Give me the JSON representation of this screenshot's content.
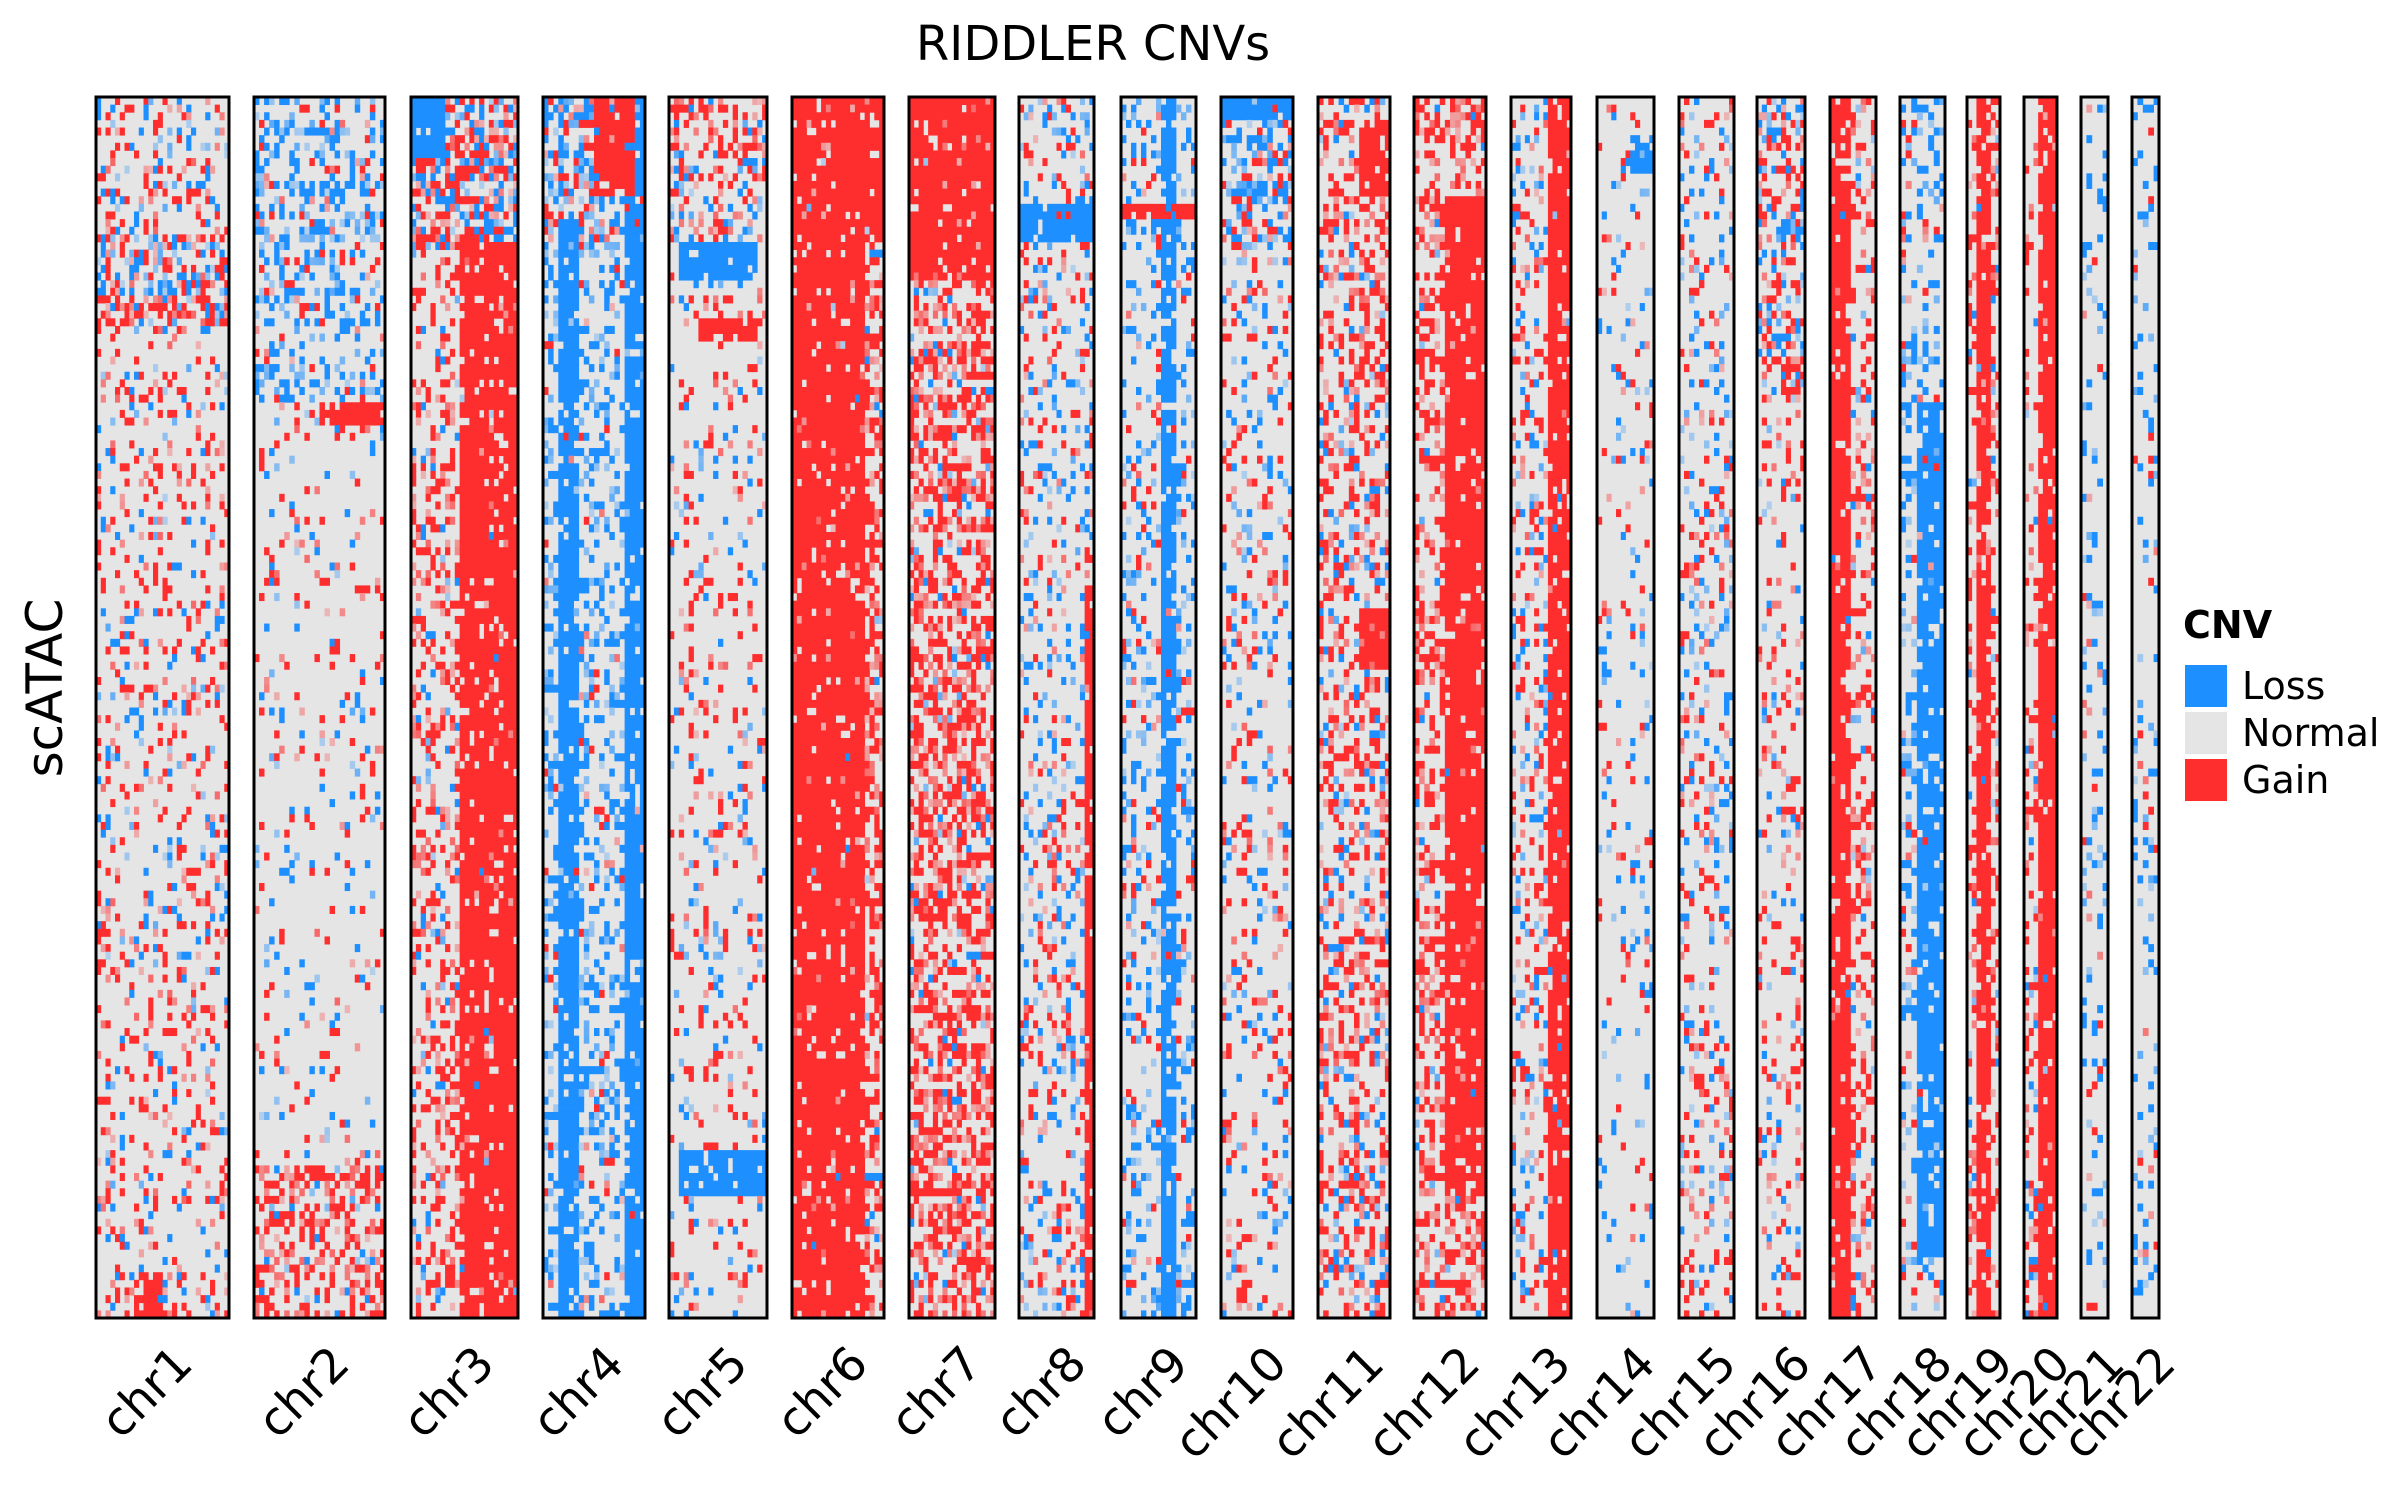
{
  "chart_data": {
    "type": "heatmap",
    "title": "RIDDLER CNVs",
    "ylabel": "scATAC",
    "categories": [
      "chr1",
      "chr2",
      "chr3",
      "chr4",
      "chr5",
      "chr6",
      "chr7",
      "chr8",
      "chr9",
      "chr10",
      "chr11",
      "chr12",
      "chr13",
      "chr14",
      "chr15",
      "chr16",
      "chr17",
      "chr18",
      "chr19",
      "chr20",
      "chr21",
      "chr22"
    ],
    "chromosome_bins": [
      28,
      26,
      22,
      20,
      20,
      19,
      18,
      16,
      15,
      14,
      14,
      14,
      13,
      12,
      11,
      10,
      9,
      8,
      7,
      7,
      5,
      5
    ],
    "n_cells": 160,
    "legend": {
      "title": "CNV",
      "entries": [
        {
          "label": "Loss",
          "color": "#1E8FFF"
        },
        {
          "label": "Normal",
          "color": "#E5E5E5"
        },
        {
          "label": "Gain",
          "color": "#FF2E2E"
        }
      ],
      "placement": "right"
    },
    "series": [
      {
        "name": "chr1",
        "profile": [
          {
            "cells": [
              0,
              18
            ],
            "gain": 0.18,
            "loss": 0.12
          },
          {
            "cells": [
              18,
              30
            ],
            "gain": 0.35,
            "loss": 0.25
          },
          {
            "cells": [
              30,
              160
            ],
            "gain": 0.14,
            "loss": 0.06
          }
        ],
        "block_gain": [
          [
            0.3,
            0.5,
            0.96,
            1.0
          ]
        ],
        "block_loss": [
          [
            0.1,
            0.6,
            0.66,
            0.64
          ]
        ]
      },
      {
        "name": "chr2",
        "profile": [
          {
            "cells": [
              0,
              40
            ],
            "gain": 0.08,
            "loss": 0.3
          },
          {
            "cells": [
              40,
              140
            ],
            "gain": 0.05,
            "loss": 0.05
          },
          {
            "cells": [
              140,
              160
            ],
            "gain": 0.4,
            "loss": 0.05
          }
        ],
        "block_gain": [
          [
            0.5,
            1.0,
            0.25,
            0.27
          ]
        ],
        "block_loss": []
      },
      {
        "name": "chr3",
        "profile": [
          {
            "cells": [
              0,
              20
            ],
            "gain": 0.4,
            "loss": 0.3
          },
          {
            "cells": [
              20,
              160
            ],
            "gain": 0.3,
            "loss": 0.04
          }
        ],
        "block_gain": [
          [
            0.45,
            1.0,
            0.12,
            1.0
          ]
        ],
        "block_loss": [
          [
            0.0,
            0.3,
            0.0,
            0.05
          ]
        ]
      },
      {
        "name": "chr4",
        "profile": [
          {
            "cells": [
              0,
              20
            ],
            "gain": 0.2,
            "loss": 0.35
          },
          {
            "cells": [
              20,
              160
            ],
            "gain": 0.03,
            "loss": 0.3
          }
        ],
        "block_loss": [
          [
            0.78,
            1.0,
            0.0,
            1.0
          ],
          [
            0.15,
            0.35,
            0.1,
            1.0
          ]
        ],
        "block_gain": [
          [
            0.5,
            0.9,
            0.0,
            0.08
          ]
        ]
      },
      {
        "name": "chr5",
        "profile": [
          {
            "cells": [
              0,
              20
            ],
            "gain": 0.3,
            "loss": 0.12
          },
          {
            "cells": [
              20,
              160
            ],
            "gain": 0.1,
            "loss": 0.05
          }
        ],
        "block_loss": [
          [
            0.1,
            1.0,
            0.86,
            0.9
          ],
          [
            0.1,
            0.9,
            0.12,
            0.15
          ]
        ],
        "block_gain": [
          [
            0.3,
            0.9,
            0.18,
            0.2
          ]
        ]
      },
      {
        "name": "chr6",
        "profile": [
          {
            "cells": [
              0,
              160
            ],
            "gain": 0.45,
            "loss": 0.04
          }
        ],
        "block_gain": [
          [
            0.0,
            1.0,
            0.0,
            0.12
          ],
          [
            0.0,
            0.8,
            0.12,
            1.0
          ]
        ],
        "block_loss": [
          [
            0.0,
            1.0,
            0.88,
            0.89
          ]
        ]
      },
      {
        "name": "chr7",
        "profile": [
          {
            "cells": [
              0,
              160
            ],
            "gain": 0.5,
            "loss": 0.05
          }
        ],
        "block_gain": [
          [
            0.0,
            1.0,
            0.0,
            0.15
          ]
        ],
        "block_loss": []
      },
      {
        "name": "chr8",
        "profile": [
          {
            "cells": [
              0,
              160
            ],
            "gain": 0.12,
            "loss": 0.12
          }
        ],
        "block_loss": [
          [
            0.0,
            1.0,
            0.09,
            0.12
          ]
        ],
        "block_gain": [
          [
            0.85,
            1.0,
            0.4,
            1.0
          ]
        ]
      },
      {
        "name": "chr9",
        "profile": [
          {
            "cells": [
              0,
              160
            ],
            "gain": 0.06,
            "loss": 0.2
          }
        ],
        "block_loss": [
          [
            0.55,
            0.75,
            0.0,
            1.0
          ]
        ],
        "block_gain": [
          [
            0.0,
            1.0,
            0.09,
            0.1
          ]
        ]
      },
      {
        "name": "chr10",
        "profile": [
          {
            "cells": [
              0,
              20
            ],
            "gain": 0.2,
            "loss": 0.35
          },
          {
            "cells": [
              20,
              160
            ],
            "gain": 0.1,
            "loss": 0.1
          }
        ],
        "block_loss": [
          [
            0.0,
            1.0,
            0.0,
            0.02
          ]
        ],
        "block_gain": []
      },
      {
        "name": "chr11",
        "profile": [
          {
            "cells": [
              0,
              160
            ],
            "gain": 0.3,
            "loss": 0.1
          }
        ],
        "block_gain": [
          [
            0.55,
            1.0,
            0.02,
            0.08
          ],
          [
            0.55,
            1.0,
            0.42,
            0.47
          ]
        ],
        "block_loss": []
      },
      {
        "name": "chr12",
        "profile": [
          {
            "cells": [
              0,
              160
            ],
            "gain": 0.4,
            "loss": 0.03
          }
        ],
        "block_gain": [
          [
            0.4,
            1.0,
            0.08,
            0.9
          ]
        ],
        "block_loss": []
      },
      {
        "name": "chr13",
        "profile": [
          {
            "cells": [
              0,
              160
            ],
            "gain": 0.15,
            "loss": 0.12
          }
        ],
        "block_gain": [
          [
            0.65,
            1.0,
            0.0,
            1.0
          ]
        ],
        "block_loss": []
      },
      {
        "name": "chr14",
        "profile": [
          {
            "cells": [
              0,
              160
            ],
            "gain": 0.04,
            "loss": 0.06
          }
        ],
        "block_loss": [
          [
            0.6,
            1.0,
            0.03,
            0.06
          ]
        ],
        "block_gain": []
      },
      {
        "name": "chr15",
        "profile": [
          {
            "cells": [
              0,
              160
            ],
            "gain": 0.12,
            "loss": 0.1
          }
        ],
        "block_gain": [],
        "block_loss": []
      },
      {
        "name": "chr16",
        "profile": [
          {
            "cells": [
              0,
              40
            ],
            "gain": 0.3,
            "loss": 0.2
          },
          {
            "cells": [
              40,
              160
            ],
            "gain": 0.12,
            "loss": 0.06
          }
        ],
        "block_gain": [],
        "block_loss": []
      },
      {
        "name": "chr17",
        "profile": [
          {
            "cells": [
              0,
              160
            ],
            "gain": 0.25,
            "loss": 0.05
          }
        ],
        "block_gain": [
          [
            0.0,
            0.4,
            0.0,
            1.0
          ]
        ],
        "block_loss": []
      },
      {
        "name": "chr18",
        "profile": [
          {
            "cells": [
              0,
              160
            ],
            "gain": 0.05,
            "loss": 0.25
          }
        ],
        "block_loss": [
          [
            0.4,
            1.0,
            0.25,
            0.95
          ]
        ],
        "block_gain": []
      },
      {
        "name": "chr19",
        "profile": [
          {
            "cells": [
              0,
              160
            ],
            "gain": 0.25,
            "loss": 0.05
          }
        ],
        "block_gain": [
          [
            0.25,
            0.75,
            0.0,
            1.0
          ]
        ],
        "block_loss": []
      },
      {
        "name": "chr20",
        "profile": [
          {
            "cells": [
              0,
              160
            ],
            "gain": 0.2,
            "loss": 0.06
          }
        ],
        "block_gain": [
          [
            0.5,
            1.0,
            0.0,
            1.0
          ]
        ],
        "block_loss": []
      },
      {
        "name": "chr21",
        "profile": [
          {
            "cells": [
              0,
              160
            ],
            "gain": 0.04,
            "loss": 0.12
          }
        ],
        "block_gain": [],
        "block_loss": []
      },
      {
        "name": "chr22",
        "profile": [
          {
            "cells": [
              0,
              160
            ],
            "gain": 0.03,
            "loss": 0.15
          }
        ],
        "block_gain": [],
        "block_loss": []
      }
    ]
  }
}
